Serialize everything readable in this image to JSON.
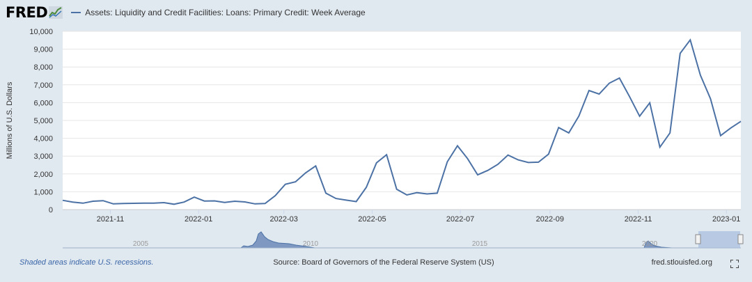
{
  "header": {
    "logo_text": "FRED",
    "series_title": "Assets: Liquidity and Credit Facilities: Loans: Primary Credit: Week Average"
  },
  "footer": {
    "recession_note": "Shaded areas indicate U.S. recessions.",
    "source": "Source: Board of Governors of the Federal Reserve System (US)",
    "site": "fred.stlouisfed.org"
  },
  "icons": {
    "fullscreen": "expand-icon",
    "logo_graph": "chart-line-icon"
  },
  "colors": {
    "series": "#4b71a5",
    "background": "#e1e9f0",
    "plot_bg": "#ffffff",
    "grid": "#e6e6e6"
  },
  "chart_data": {
    "type": "line",
    "title": "Assets: Liquidity and Credit Facilities: Loans: Primary Credit: Week Average",
    "ylabel": "Millions of U.S. Dollars",
    "xlabel": "",
    "ylim": [
      0,
      10000
    ],
    "yticks": [
      0,
      1000,
      2000,
      3000,
      4000,
      5000,
      6000,
      7000,
      8000,
      9000,
      10000
    ],
    "ytick_labels": [
      "0",
      "1,000",
      "2,000",
      "3,000",
      "4,000",
      "5,000",
      "6,000",
      "7,000",
      "8,000",
      "9,000",
      "10,000"
    ],
    "xlim": [
      "2021-09-29",
      "2023-01-11"
    ],
    "xticks": [
      "2021-11-01",
      "2022-01-01",
      "2022-03-01",
      "2022-05-01",
      "2022-07-01",
      "2022-09-01",
      "2022-11-01",
      "2023-01-01"
    ],
    "xtick_labels": [
      "2021-11",
      "2022-01",
      "2022-03",
      "2022-05",
      "2022-07",
      "2022-09",
      "2022-11",
      "2023-01"
    ],
    "grid": true,
    "series": [
      {
        "x": [
          "2021-09-29",
          "2021-10-06",
          "2021-10-13",
          "2021-10-20",
          "2021-10-27",
          "2021-11-03",
          "2021-11-10",
          "2021-11-17",
          "2021-11-24",
          "2021-12-01",
          "2021-12-08",
          "2021-12-15",
          "2021-12-22",
          "2021-12-29",
          "2022-01-05",
          "2022-01-12",
          "2022-01-19",
          "2022-01-26",
          "2022-02-02",
          "2022-02-09",
          "2022-02-16",
          "2022-02-23",
          "2022-03-02",
          "2022-03-09",
          "2022-03-16",
          "2022-03-23",
          "2022-03-30",
          "2022-04-06",
          "2022-04-13",
          "2022-04-20",
          "2022-04-27",
          "2022-05-04",
          "2022-05-11",
          "2022-05-18",
          "2022-05-25",
          "2022-06-01",
          "2022-06-08",
          "2022-06-15",
          "2022-06-22",
          "2022-06-29",
          "2022-07-06",
          "2022-07-13",
          "2022-07-20",
          "2022-07-27",
          "2022-08-03",
          "2022-08-10",
          "2022-08-17",
          "2022-08-24",
          "2022-08-31",
          "2022-09-07",
          "2022-09-14",
          "2022-09-21",
          "2022-09-28",
          "2022-10-05",
          "2022-10-12",
          "2022-10-19",
          "2022-10-26",
          "2022-11-02",
          "2022-11-09",
          "2022-11-16",
          "2022-11-23",
          "2022-11-30",
          "2022-12-07",
          "2022-12-14",
          "2022-12-21",
          "2022-12-28",
          "2023-01-04",
          "2023-01-11"
        ],
        "values": [
          520,
          420,
          360,
          470,
          500,
          320,
          340,
          350,
          360,
          360,
          390,
          300,
          420,
          700,
          480,
          490,
          400,
          470,
          430,
          320,
          340,
          780,
          1420,
          1560,
          2060,
          2450,
          920,
          620,
          530,
          450,
          1250,
          2620,
          3080,
          1140,
          820,
          950,
          880,
          920,
          2680,
          3580,
          2860,
          1950,
          2200,
          2540,
          3060,
          2790,
          2640,
          2660,
          3110,
          4600,
          4300,
          5250,
          6680,
          6480,
          7090,
          7380,
          6340,
          5240,
          5990,
          3500,
          4300,
          8760,
          9520,
          7540,
          6220,
          4150,
          4580,
          4950
        ]
      }
    ],
    "navigator_xtick_labels": [
      "2005",
      "2010",
      "2015",
      "2020"
    ]
  }
}
